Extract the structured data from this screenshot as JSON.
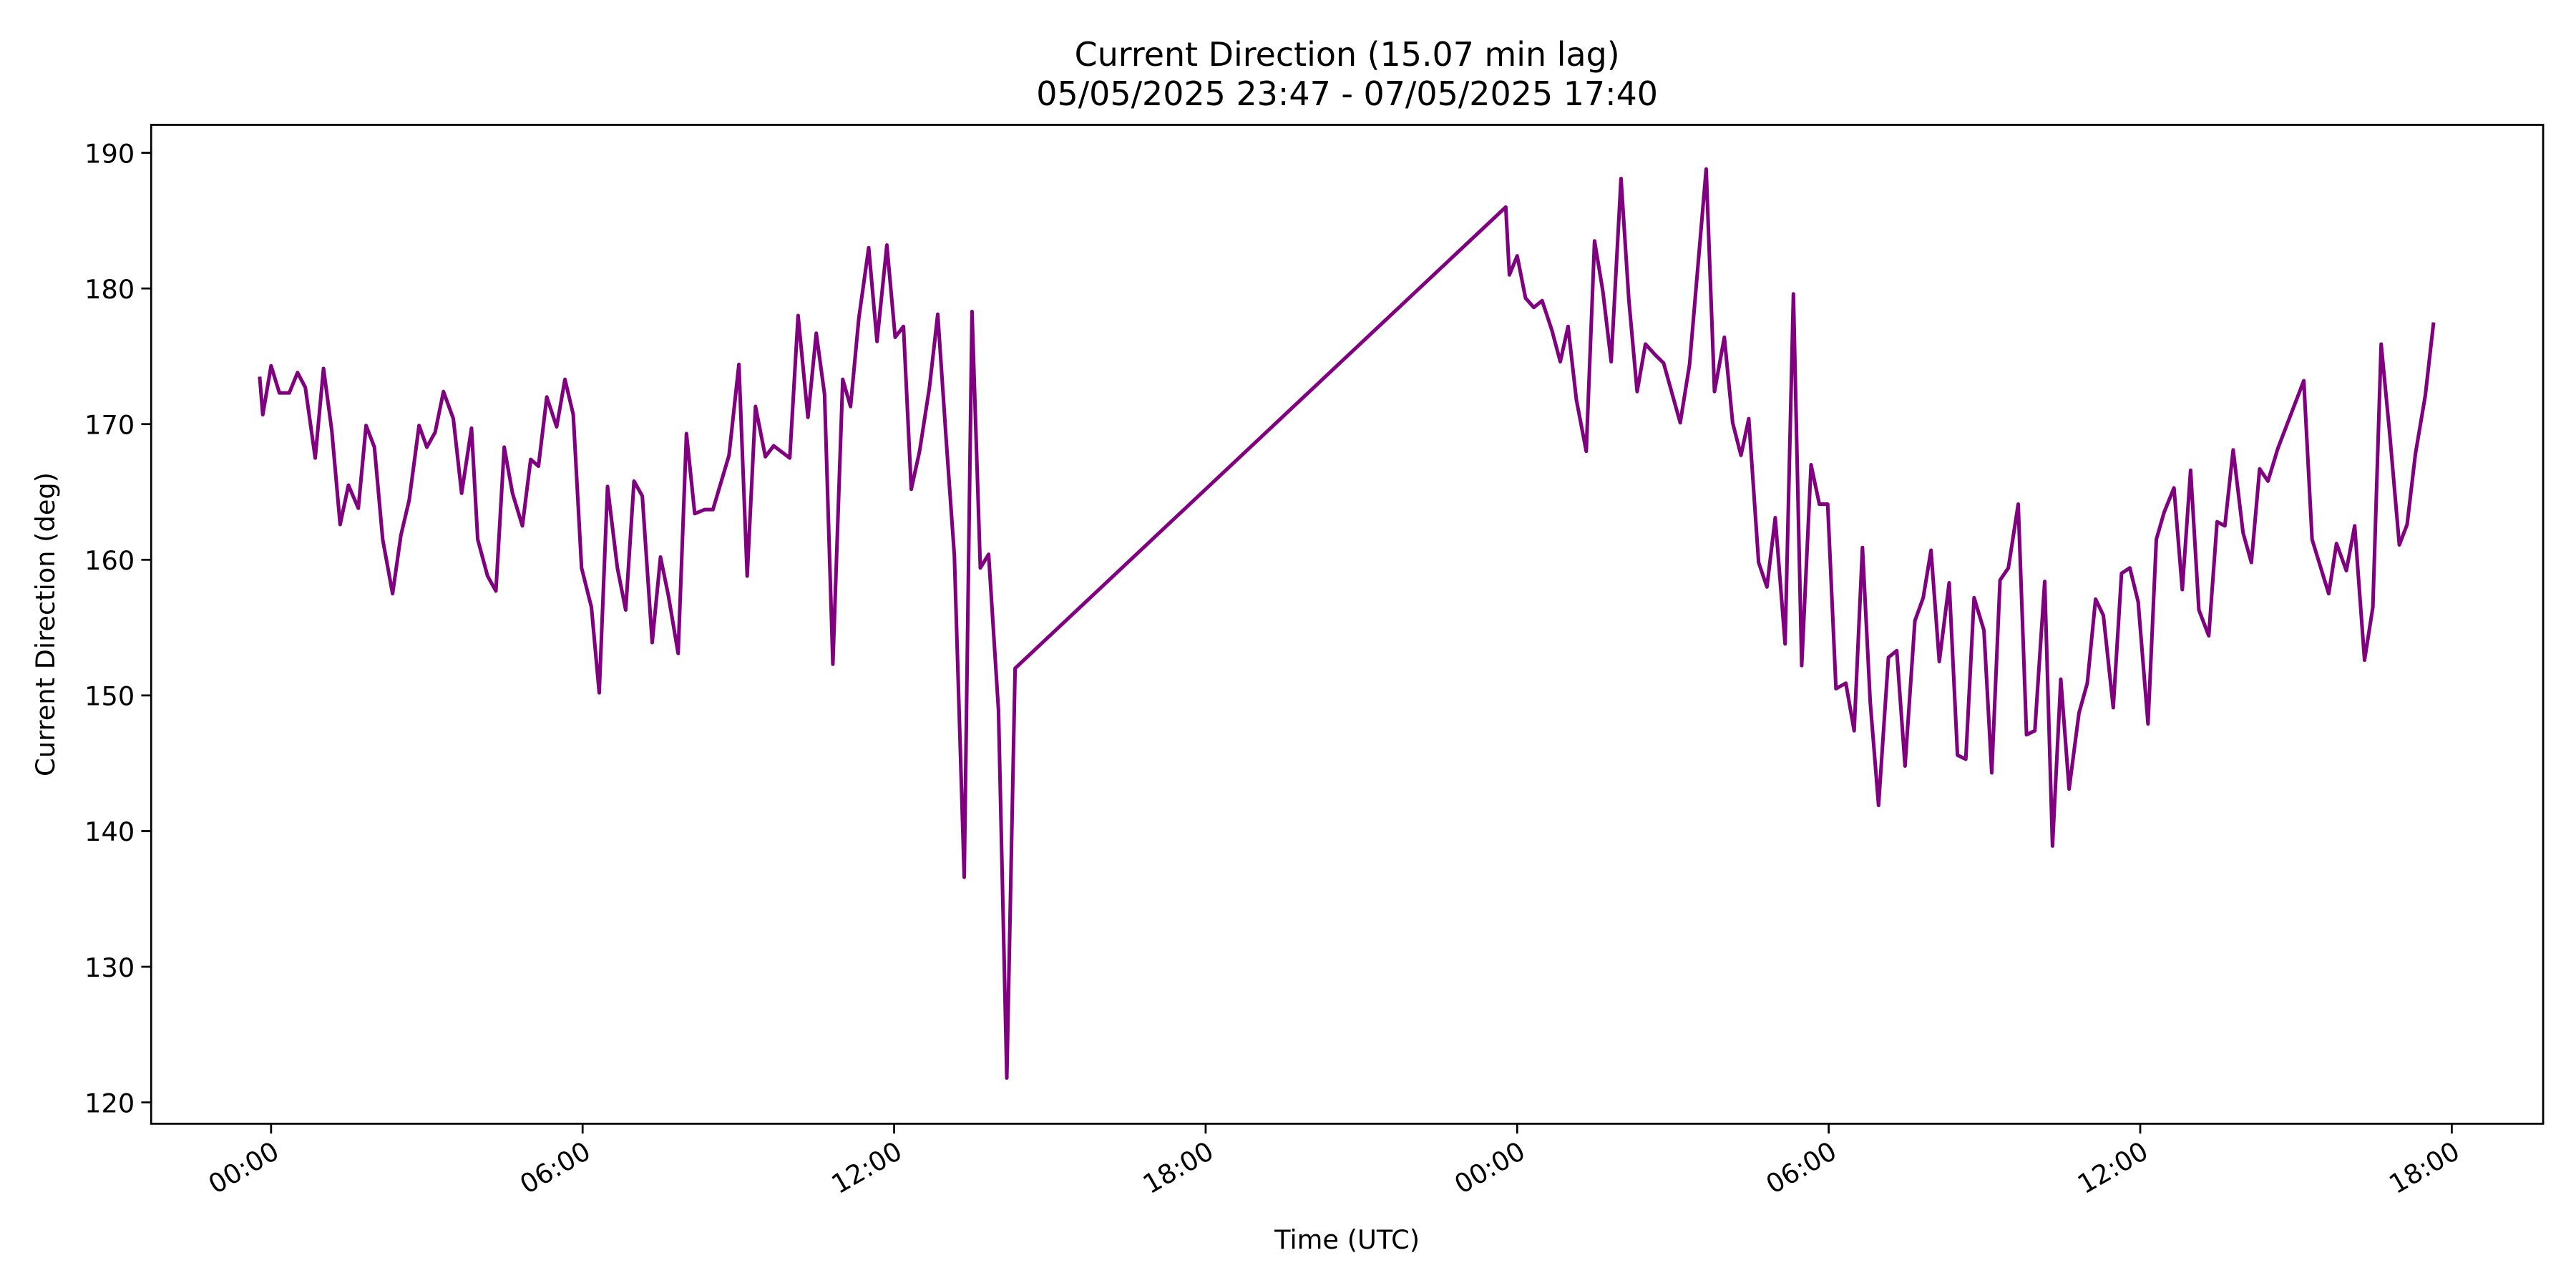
{
  "chart_data": {
    "type": "line",
    "title": "Current Direction (15.07 min lag)",
    "subtitle": "05/05/2025 23:47 - 07/05/2025 17:40",
    "x_label": "Time (UTC)",
    "y_label": "Current Direction (deg)",
    "x": [
      -0.22,
      -0.16,
      0,
      0.16,
      0.35,
      0.51,
      0.66,
      0.85,
      1.01,
      1.17,
      1.33,
      1.49,
      1.68,
      1.83,
      1.99,
      2.15,
      2.34,
      2.5,
      2.66,
      2.85,
      3.0,
      3.16,
      3.32,
      3.51,
      3.67,
      3.86,
      3.98,
      4.17,
      4.33,
      4.49,
      4.65,
      4.84,
      5.0,
      5.15,
      5.31,
      5.5,
      5.66,
      5.82,
      5.98,
      6.17,
      6.32,
      6.48,
      6.67,
      6.83,
      6.99,
      7.15,
      7.34,
      7.5,
      7.65,
      7.84,
      8.0,
      8.16,
      8.35,
      8.51,
      8.82,
      9.01,
      9.17,
      9.33,
      9.52,
      9.68,
      9.99,
      10.15,
      10.34,
      10.5,
      10.66,
      10.82,
      11.01,
      11.16,
      11.32,
      11.51,
      11.67,
      11.86,
      12.02,
      12.18,
      12.33,
      12.49,
      12.68,
      12.84,
      13.0,
      13.16,
      13.35,
      13.5,
      13.66,
      13.82,
      14.01,
      14.17,
      14.33,
      23.78,
      23.85,
      24.0,
      24.16,
      24.32,
      24.48,
      24.67,
      24.83,
      24.98,
      25.14,
      25.33,
      25.49,
      25.65,
      25.81,
      26.0,
      26.15,
      26.31,
      26.47,
      26.66,
      26.82,
      27.14,
      27.32,
      27.64,
      27.8,
      27.99,
      28.15,
      28.31,
      28.46,
      28.65,
      28.81,
      28.97,
      29.16,
      29.32,
      29.48,
      29.66,
      29.82,
      29.98,
      30.14,
      30.33,
      30.49,
      30.65,
      30.8,
      30.96,
      31.15,
      31.31,
      31.47,
      31.66,
      31.82,
      31.97,
      32.13,
      32.32,
      32.48,
      32.64,
      32.8,
      32.99,
      33.14,
      33.3,
      33.46,
      33.65,
      33.81,
      33.97,
      34.16,
      34.31,
      34.47,
      34.63,
      34.82,
      34.98,
      35.14,
      35.29,
      35.48,
      35.64,
      35.8,
      35.96,
      36.15,
      36.31,
      36.46,
      36.65,
      36.81,
      36.97,
      37.13,
      37.32,
      37.48,
      37.63,
      37.79,
      37.98,
      38.14,
      38.3,
      38.46,
      38.65,
      38.8,
      39.15,
      39.31,
      39.63,
      39.78,
      39.97,
      40.13,
      40.32,
      40.48,
      40.64,
      40.8,
      40.99,
      41.14,
      41.3,
      41.49,
      41.65
    ],
    "series": [
      {
        "name": "Current Direction",
        "color": "#800080",
        "values": [
          173.5,
          170.7,
          174.3,
          172.3,
          172.3,
          173.8,
          172.7,
          167.5,
          174.1,
          169.5,
          162.6,
          165.5,
          163.8,
          169.9,
          168.3,
          161.5,
          157.5,
          161.8,
          164.4,
          169.9,
          168.3,
          169.4,
          172.4,
          170.4,
          164.9,
          169.7,
          161.5,
          158.8,
          157.7,
          168.3,
          164.9,
          162.5,
          167.4,
          166.9,
          172.0,
          169.8,
          173.3,
          170.7,
          159.4,
          156.5,
          150.2,
          165.4,
          159.4,
          156.3,
          165.8,
          164.7,
          153.9,
          160.2,
          157.4,
          153.1,
          169.3,
          163.4,
          163.7,
          163.7,
          167.7,
          174.4,
          158.8,
          171.3,
          167.6,
          168.4,
          167.5,
          178.0,
          170.5,
          176.7,
          172.2,
          152.3,
          173.3,
          171.3,
          177.8,
          183.0,
          176.1,
          183.2,
          176.4,
          177.2,
          165.2,
          168.0,
          172.7,
          178.1,
          169.0,
          160.3,
          136.6,
          178.3,
          159.4,
          160.4,
          148.9,
          121.8,
          152.0,
          186.0,
          181.0,
          182.4,
          179.3,
          178.6,
          179.1,
          176.9,
          174.6,
          177.2,
          171.8,
          168.0,
          183.5,
          179.8,
          174.6,
          188.1,
          179.2,
          172.4,
          175.9,
          175.1,
          174.5,
          170.1,
          174.4,
          188.8,
          172.4,
          176.4,
          170.1,
          167.7,
          170.4,
          159.8,
          158.0,
          163.1,
          153.8,
          179.6,
          152.2,
          167.0,
          164.1,
          164.1,
          150.5,
          150.9,
          147.4,
          160.9,
          149.5,
          141.9,
          152.8,
          153.3,
          144.8,
          155.5,
          157.2,
          160.7,
          152.5,
          158.3,
          145.6,
          145.3,
          157.2,
          154.8,
          144.3,
          158.5,
          159.4,
          164.1,
          147.1,
          147.4,
          158.4,
          138.9,
          151.2,
          143.1,
          148.7,
          150.9,
          157.1,
          155.9,
          149.1,
          159.0,
          159.4,
          156.9,
          147.9,
          161.5,
          163.5,
          165.3,
          157.8,
          166.6,
          156.3,
          154.4,
          162.8,
          162.5,
          168.1,
          162.0,
          159.8,
          166.7,
          165.8,
          168.2,
          169.7,
          173.2,
          161.5,
          157.5,
          161.2,
          159.2,
          162.5,
          152.6,
          156.5,
          175.9,
          169.5,
          161.1,
          162.6,
          167.8,
          172.1,
          177.5
        ]
      }
    ],
    "xlim": [
      -2.31,
      43.76
    ],
    "xticks": [
      {
        "value": 0,
        "label": "00:00"
      },
      {
        "value": 6,
        "label": "06:00"
      },
      {
        "value": 12,
        "label": "12:00"
      },
      {
        "value": 18,
        "label": "18:00"
      },
      {
        "value": 24,
        "label": "00:00"
      },
      {
        "value": 30,
        "label": "06:00"
      },
      {
        "value": 36,
        "label": "12:00"
      },
      {
        "value": 42,
        "label": "18:00"
      }
    ],
    "ylim": [
      118.43,
      192.06
    ],
    "yticks": [
      120,
      130,
      140,
      150,
      160,
      170,
      180,
      190
    ]
  }
}
